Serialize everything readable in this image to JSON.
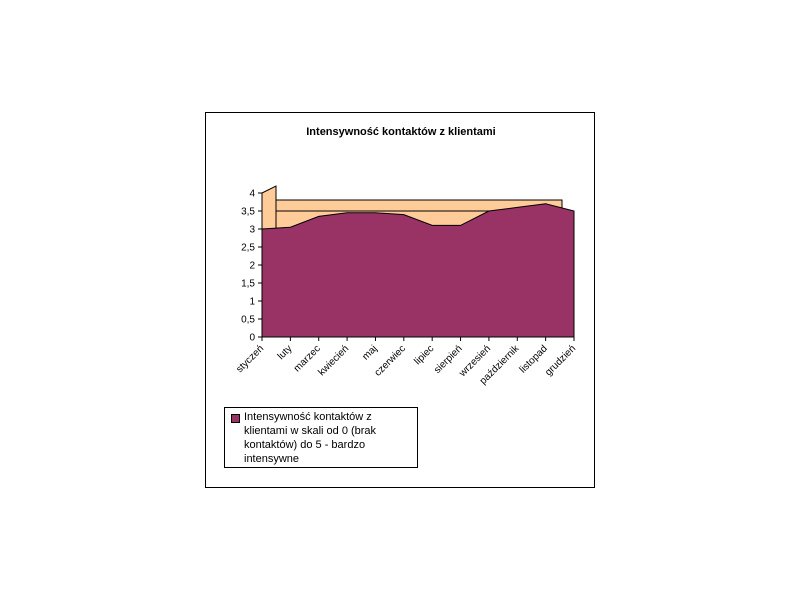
{
  "chart_data": {
    "type": "area",
    "title": "Intensywność kontaktów z klientami",
    "categories": [
      "styczeń",
      "luty",
      "marzec",
      "kwiecień",
      "maj",
      "czerwiec",
      "lipiec",
      "sierpień",
      "wrzesień",
      "październik",
      "listopad",
      "grudzień"
    ],
    "series": [
      {
        "name": "Intensywność kontaktów z klientami w skali od 0 (brak kontaktów) do 5 - bardzo intensywne",
        "values": [
          3.0,
          3.05,
          3.35,
          3.45,
          3.45,
          3.4,
          3.1,
          3.1,
          3.5,
          3.6,
          3.7,
          3.5
        ]
      }
    ],
    "ylim": [
      0,
      4
    ],
    "yticks": [
      "0",
      "0,5",
      "1",
      "1,5",
      "2",
      "2,5",
      "3",
      "3,5",
      "4"
    ],
    "legend_position": "bottom-left",
    "grid": false,
    "colors": {
      "series": "#993366",
      "wall": "#FFCC99",
      "floor": "#FFCC99"
    }
  }
}
